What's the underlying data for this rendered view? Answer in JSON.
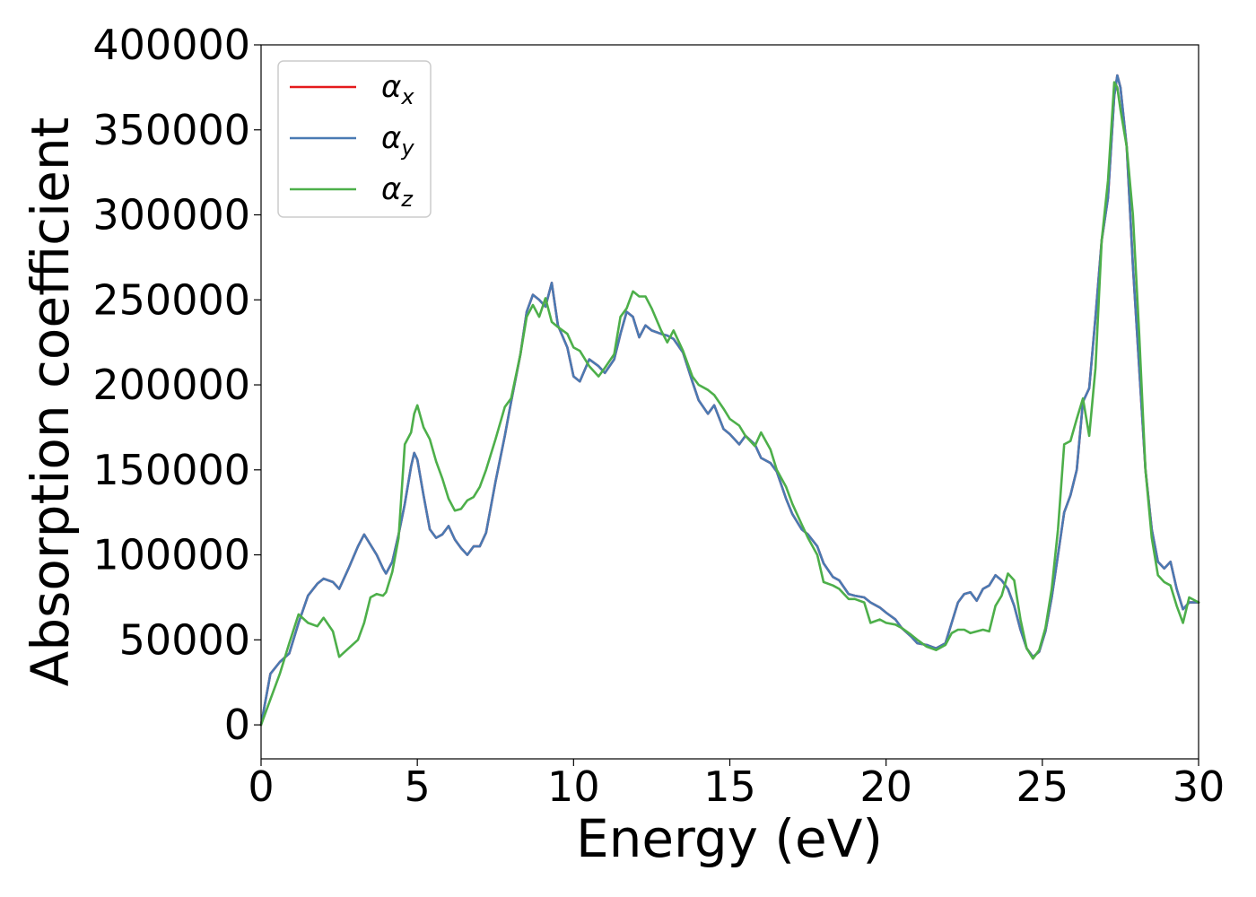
{
  "chart_data": {
    "type": "line",
    "xlabel": "Energy (eV)",
    "ylabel": "Absorption coefficient",
    "xlim": [
      0,
      30
    ],
    "ylim": [
      -20000,
      400000
    ],
    "xticks": [
      0,
      5,
      10,
      15,
      20,
      25,
      30
    ],
    "yticks": [
      0,
      50000,
      100000,
      150000,
      200000,
      250000,
      300000,
      350000,
      400000
    ],
    "grid": false,
    "legend_position": "top-left",
    "series": [
      {
        "name": "α",
        "subscript": "x",
        "color": "#e41a1c",
        "x": [
          0,
          0.3,
          0.6,
          0.9,
          1.2,
          1.5,
          1.8,
          2.0,
          2.3,
          2.5,
          2.8,
          3.1,
          3.3,
          3.5,
          3.7,
          3.9,
          4.0,
          4.2,
          4.4,
          4.6,
          4.8,
          4.9,
          5.0,
          5.2,
          5.4,
          5.6,
          5.8,
          6.0,
          6.2,
          6.4,
          6.6,
          6.8,
          7.0,
          7.2,
          7.5,
          7.8,
          8.0,
          8.3,
          8.5,
          8.7,
          8.9,
          9.1,
          9.3,
          9.5,
          9.8,
          10.0,
          10.2,
          10.5,
          10.8,
          11.0,
          11.3,
          11.5,
          11.7,
          11.9,
          12.1,
          12.3,
          12.5,
          12.8,
          13.0,
          13.2,
          13.5,
          13.8,
          14.0,
          14.3,
          14.5,
          14.8,
          15.0,
          15.3,
          15.5,
          15.8,
          16.0,
          16.3,
          16.5,
          16.8,
          17.0,
          17.3,
          17.5,
          17.8,
          18.0,
          18.3,
          18.5,
          18.8,
          19.0,
          19.3,
          19.5,
          19.8,
          20.0,
          20.3,
          20.5,
          20.8,
          21.0,
          21.3,
          21.6,
          21.9,
          22.1,
          22.3,
          22.5,
          22.7,
          22.9,
          23.1,
          23.3,
          23.5,
          23.7,
          23.9,
          24.1,
          24.3,
          24.5,
          24.7,
          24.9,
          25.1,
          25.3,
          25.5,
          25.7,
          25.9,
          26.1,
          26.3,
          26.5,
          26.7,
          26.9,
          27.1,
          27.3,
          27.4,
          27.5,
          27.7,
          27.9,
          28.1,
          28.3,
          28.5,
          28.7,
          28.9,
          29.1,
          29.3,
          29.5,
          29.7,
          30.0
        ],
        "y": [
          0,
          30000,
          37000,
          42000,
          60000,
          76000,
          83000,
          86000,
          84000,
          80000,
          92000,
          105000,
          112000,
          106000,
          100000,
          92000,
          89000,
          96000,
          112000,
          130000,
          152000,
          160000,
          156000,
          135000,
          115000,
          110000,
          112000,
          117000,
          109000,
          104000,
          100000,
          105000,
          105000,
          113000,
          143000,
          170000,
          190000,
          218000,
          243000,
          253000,
          250000,
          246000,
          260000,
          235000,
          222000,
          205000,
          202000,
          215000,
          211000,
          207000,
          215000,
          230000,
          243000,
          240000,
          228000,
          235000,
          232000,
          230000,
          229000,
          227000,
          219000,
          202000,
          191000,
          183000,
          188000,
          174000,
          171000,
          165000,
          170000,
          165000,
          157000,
          154000,
          149000,
          133000,
          124000,
          115000,
          112000,
          105000,
          95000,
          87000,
          85000,
          77000,
          76000,
          75000,
          72000,
          69000,
          66000,
          62000,
          57000,
          52000,
          48000,
          47000,
          45000,
          48000,
          60000,
          72000,
          77000,
          78000,
          73000,
          80000,
          82000,
          88000,
          85000,
          80000,
          70000,
          56000,
          45000,
          40000,
          43000,
          55000,
          75000,
          100000,
          125000,
          135000,
          150000,
          190000,
          198000,
          240000,
          285000,
          310000,
          370000,
          382000,
          375000,
          340000,
          270000,
          210000,
          150000,
          115000,
          96000,
          92000,
          96000,
          80000,
          68000,
          72000,
          72000
        ]
      },
      {
        "name": "α",
        "subscript": "y",
        "color": "#4a7ab3",
        "x": [
          0,
          0.3,
          0.6,
          0.9,
          1.2,
          1.5,
          1.8,
          2.0,
          2.3,
          2.5,
          2.8,
          3.1,
          3.3,
          3.5,
          3.7,
          3.9,
          4.0,
          4.2,
          4.4,
          4.6,
          4.8,
          4.9,
          5.0,
          5.2,
          5.4,
          5.6,
          5.8,
          6.0,
          6.2,
          6.4,
          6.6,
          6.8,
          7.0,
          7.2,
          7.5,
          7.8,
          8.0,
          8.3,
          8.5,
          8.7,
          8.9,
          9.1,
          9.3,
          9.5,
          9.8,
          10.0,
          10.2,
          10.5,
          10.8,
          11.0,
          11.3,
          11.5,
          11.7,
          11.9,
          12.1,
          12.3,
          12.5,
          12.8,
          13.0,
          13.2,
          13.5,
          13.8,
          14.0,
          14.3,
          14.5,
          14.8,
          15.0,
          15.3,
          15.5,
          15.8,
          16.0,
          16.3,
          16.5,
          16.8,
          17.0,
          17.3,
          17.5,
          17.8,
          18.0,
          18.3,
          18.5,
          18.8,
          19.0,
          19.3,
          19.5,
          19.8,
          20.0,
          20.3,
          20.5,
          20.8,
          21.0,
          21.3,
          21.6,
          21.9,
          22.1,
          22.3,
          22.5,
          22.7,
          22.9,
          23.1,
          23.3,
          23.5,
          23.7,
          23.9,
          24.1,
          24.3,
          24.5,
          24.7,
          24.9,
          25.1,
          25.3,
          25.5,
          25.7,
          25.9,
          26.1,
          26.3,
          26.5,
          26.7,
          26.9,
          27.1,
          27.3,
          27.4,
          27.5,
          27.7,
          27.9,
          28.1,
          28.3,
          28.5,
          28.7,
          28.9,
          29.1,
          29.3,
          29.5,
          29.7,
          30.0
        ],
        "y": [
          0,
          30000,
          37000,
          42000,
          60000,
          76000,
          83000,
          86000,
          84000,
          80000,
          92000,
          105000,
          112000,
          106000,
          100000,
          92000,
          89000,
          96000,
          112000,
          130000,
          152000,
          160000,
          156000,
          135000,
          115000,
          110000,
          112000,
          117000,
          109000,
          104000,
          100000,
          105000,
          105000,
          113000,
          143000,
          170000,
          190000,
          218000,
          243000,
          253000,
          250000,
          246000,
          260000,
          235000,
          222000,
          205000,
          202000,
          215000,
          211000,
          207000,
          215000,
          230000,
          243000,
          240000,
          228000,
          235000,
          232000,
          230000,
          229000,
          227000,
          219000,
          202000,
          191000,
          183000,
          188000,
          174000,
          171000,
          165000,
          170000,
          165000,
          157000,
          154000,
          149000,
          133000,
          124000,
          115000,
          112000,
          105000,
          95000,
          87000,
          85000,
          77000,
          76000,
          75000,
          72000,
          69000,
          66000,
          62000,
          57000,
          52000,
          48000,
          47000,
          45000,
          48000,
          60000,
          72000,
          77000,
          78000,
          73000,
          80000,
          82000,
          88000,
          85000,
          80000,
          70000,
          56000,
          45000,
          40000,
          43000,
          55000,
          75000,
          100000,
          125000,
          135000,
          150000,
          190000,
          198000,
          240000,
          285000,
          310000,
          370000,
          382000,
          375000,
          340000,
          270000,
          210000,
          150000,
          115000,
          96000,
          92000,
          96000,
          80000,
          68000,
          72000,
          72000
        ]
      },
      {
        "name": "α",
        "subscript": "z",
        "color": "#4daf4a",
        "x": [
          0,
          0.3,
          0.6,
          0.9,
          1.2,
          1.5,
          1.8,
          2.0,
          2.3,
          2.5,
          2.8,
          3.1,
          3.3,
          3.5,
          3.7,
          3.9,
          4.0,
          4.2,
          4.4,
          4.6,
          4.8,
          4.9,
          5.0,
          5.2,
          5.4,
          5.6,
          5.8,
          6.0,
          6.2,
          6.4,
          6.6,
          6.8,
          7.0,
          7.2,
          7.5,
          7.8,
          8.0,
          8.3,
          8.5,
          8.7,
          8.9,
          9.1,
          9.3,
          9.5,
          9.8,
          10.0,
          10.2,
          10.5,
          10.8,
          11.0,
          11.3,
          11.5,
          11.7,
          11.9,
          12.1,
          12.3,
          12.5,
          12.8,
          13.0,
          13.2,
          13.5,
          13.8,
          14.0,
          14.3,
          14.5,
          14.8,
          15.0,
          15.3,
          15.5,
          15.8,
          16.0,
          16.3,
          16.5,
          16.8,
          17.0,
          17.3,
          17.5,
          17.8,
          18.0,
          18.3,
          18.5,
          18.8,
          19.0,
          19.3,
          19.5,
          19.8,
          20.0,
          20.3,
          20.5,
          20.8,
          21.0,
          21.3,
          21.6,
          21.9,
          22.1,
          22.3,
          22.5,
          22.7,
          22.9,
          23.1,
          23.3,
          23.5,
          23.7,
          23.9,
          24.1,
          24.3,
          24.5,
          24.7,
          24.9,
          25.1,
          25.3,
          25.5,
          25.7,
          25.9,
          26.1,
          26.3,
          26.5,
          26.7,
          26.9,
          27.1,
          27.3,
          27.4,
          27.5,
          27.7,
          27.9,
          28.1,
          28.3,
          28.5,
          28.7,
          28.9,
          29.1,
          29.3,
          29.5,
          29.7,
          30.0
        ],
        "y": [
          0,
          15000,
          30000,
          48000,
          65000,
          60000,
          58000,
          63000,
          55000,
          40000,
          45000,
          50000,
          60000,
          75000,
          77000,
          76000,
          78000,
          90000,
          110000,
          165000,
          172000,
          183000,
          188000,
          175000,
          168000,
          155000,
          145000,
          133000,
          126000,
          127000,
          132000,
          134000,
          140000,
          150000,
          168000,
          187000,
          192000,
          218000,
          240000,
          247000,
          240000,
          251000,
          237000,
          234000,
          230000,
          222000,
          220000,
          211000,
          205000,
          210000,
          218000,
          240000,
          245000,
          255000,
          252000,
          252000,
          245000,
          232000,
          225000,
          232000,
          220000,
          205000,
          200000,
          197000,
          194000,
          186000,
          180000,
          176000,
          170000,
          164000,
          172000,
          162000,
          150000,
          140000,
          130000,
          118000,
          110000,
          100000,
          84000,
          82000,
          80000,
          74000,
          74000,
          72000,
          60000,
          62000,
          60000,
          59000,
          57000,
          53000,
          50000,
          46000,
          44000,
          47000,
          54000,
          56000,
          56000,
          54000,
          55000,
          56000,
          55000,
          70000,
          76000,
          89000,
          85000,
          62000,
          45000,
          39000,
          44000,
          57000,
          80000,
          115000,
          165000,
          167000,
          180000,
          192000,
          170000,
          210000,
          285000,
          320000,
          378000,
          375000,
          362000,
          340000,
          300000,
          230000,
          150000,
          110000,
          88000,
          84000,
          82000,
          70000,
          60000,
          75000,
          72000
        ]
      }
    ]
  }
}
